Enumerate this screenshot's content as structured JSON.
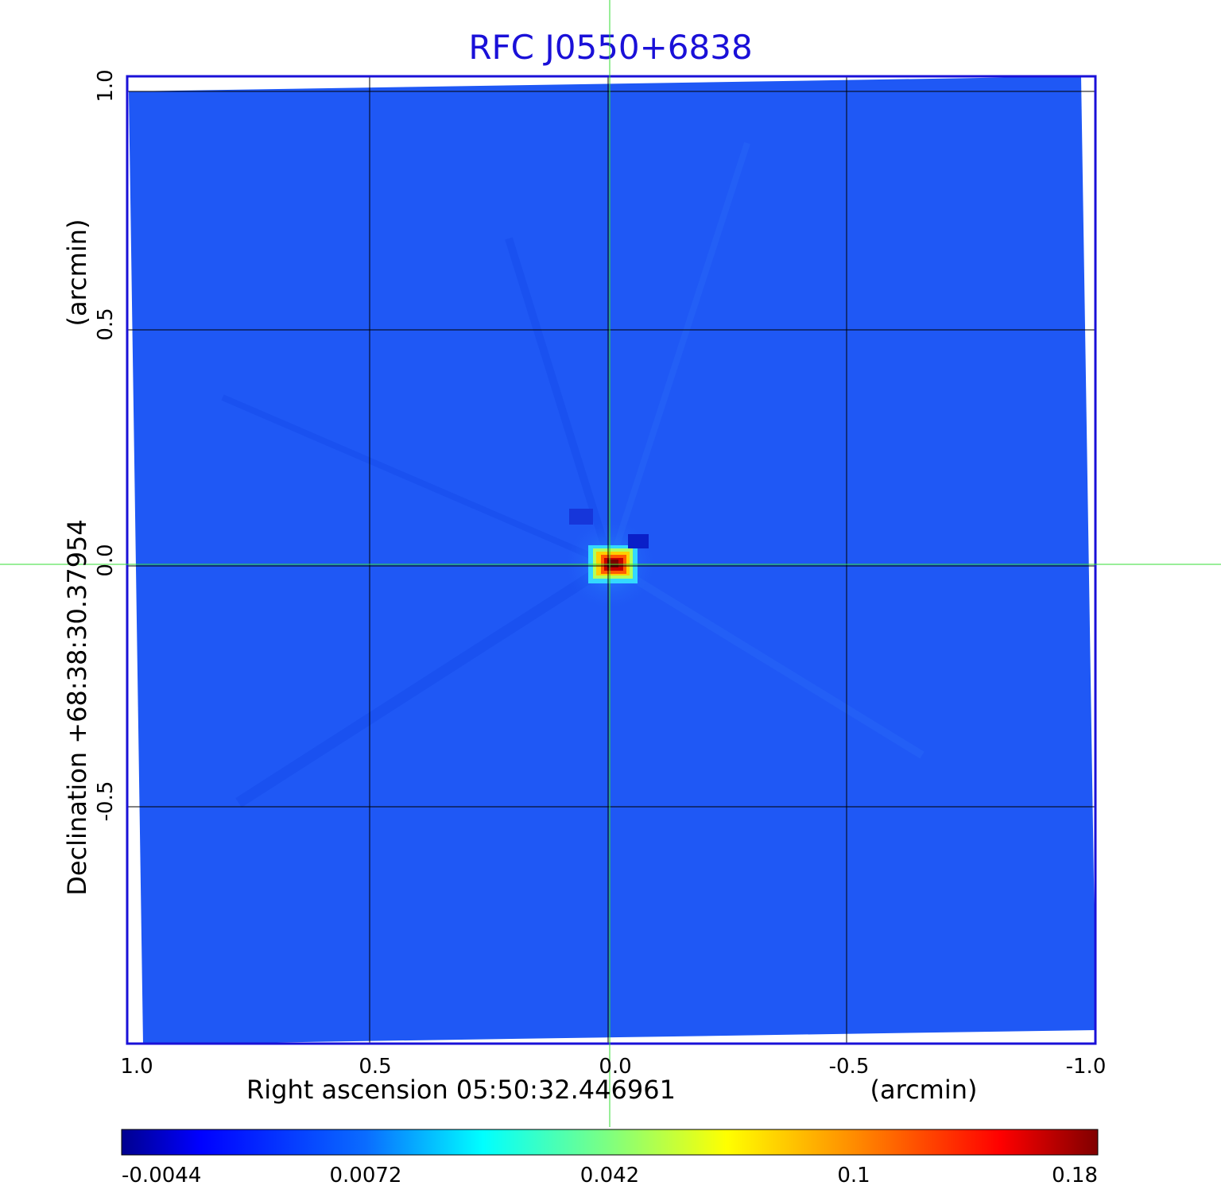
{
  "chart_data": {
    "type": "heatmap",
    "title": "RFC J0550+6838",
    "xlabel": "Right ascension  05:50:32.446961",
    "xlabel_unit": "(arcmin)",
    "ylabel": "Declination  +68:38:30.37954",
    "ylabel_unit": "(arcmin)",
    "xlim": [
      1.0,
      -1.0
    ],
    "ylim": [
      -1.0,
      1.0
    ],
    "x_ticks": [
      1.0,
      0.5,
      0.0,
      -0.5,
      -1.0
    ],
    "x_tick_labels": [
      "1.0",
      "0.5",
      "0.0",
      "-0.5",
      "-1.0"
    ],
    "y_ticks": [
      1.0,
      0.5,
      0.0,
      -0.5
    ],
    "y_tick_labels": [
      "1.0",
      "0.5",
      "0.0",
      "-0.5"
    ],
    "grid": true,
    "crosshair": [
      0.0,
      0.0
    ],
    "colormap": "jet",
    "colorbar": {
      "ticks": [
        -0.0044,
        0.0072,
        0.042,
        0.1,
        0.18
      ],
      "tick_labels": [
        "-0.0044",
        "0.0072",
        "0.042",
        "0.1",
        "0.18"
      ]
    },
    "peak": {
      "x": 0.0,
      "y": 0.0,
      "value": 0.18
    },
    "background_level": 0.0,
    "colors": {
      "title": "#1a10d8",
      "frame": "#1a10d8",
      "crosshair": "#33dd33",
      "grid": "#000000"
    }
  }
}
